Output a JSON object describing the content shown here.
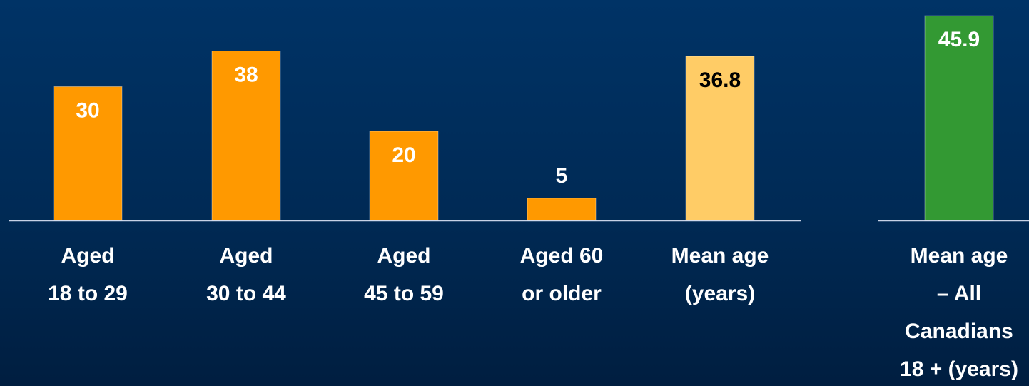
{
  "chart_data": [
    {
      "type": "bar",
      "categories": [
        [
          "Aged",
          "18 to 29"
        ],
        [
          "Aged",
          "30 to 44"
        ],
        [
          "Aged",
          "45 to 59"
        ],
        [
          "Aged 60",
          "or older"
        ],
        [
          "Mean age",
          "(years)"
        ]
      ],
      "values": [
        30,
        38,
        20,
        5,
        36.8
      ],
      "value_labels": [
        "30",
        "38",
        "20",
        "5",
        "36.8"
      ],
      "bar_colors": [
        "#ff9900",
        "#ff9900",
        "#ff9900",
        "#ff9900",
        "#ffcc66"
      ],
      "label_colors": [
        "#ffffff",
        "#ffffff",
        "#ffffff",
        "#ffffff",
        "#000000"
      ],
      "ylim": [
        0,
        40
      ],
      "grid": false
    },
    {
      "type": "bar",
      "categories": [
        [
          "Mean age",
          "– All",
          "Canadians",
          "18 + (years)"
        ]
      ],
      "values": [
        45.9
      ],
      "value_labels": [
        "45.9"
      ],
      "bar_colors": [
        "#339933"
      ],
      "label_colors": [
        "#ffffff"
      ],
      "ylim": [
        0,
        40
      ],
      "grid": false
    }
  ],
  "colors": {
    "background": "#003366",
    "axis_line": "#c8d2e6"
  }
}
